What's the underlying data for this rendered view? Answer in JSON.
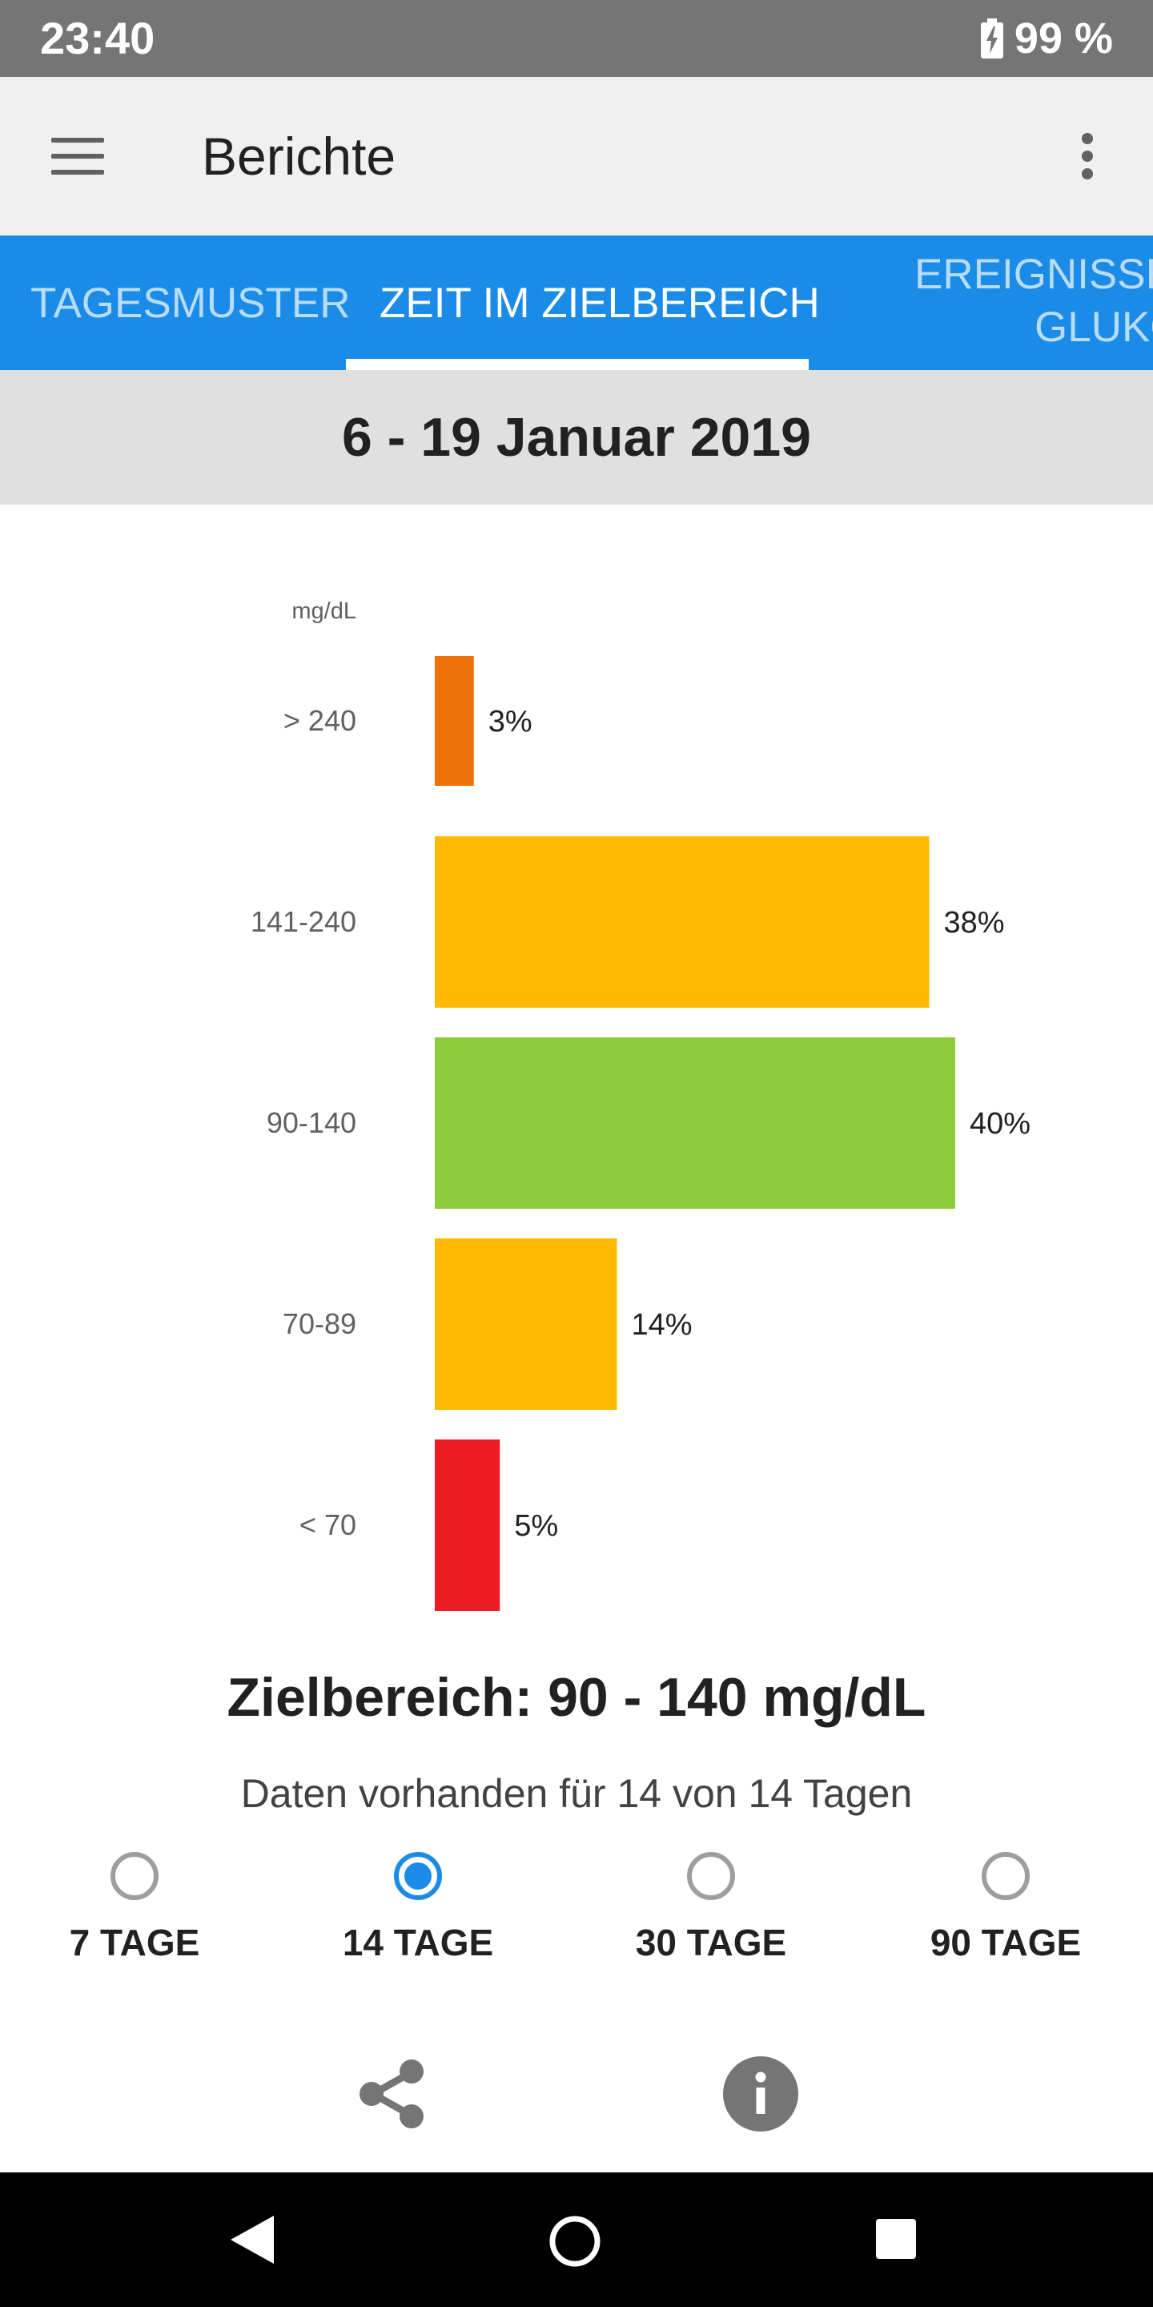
{
  "status_bar": {
    "time": "23:40",
    "battery": "99 %",
    "battery_icon": "battery-charging-icon"
  },
  "app_bar": {
    "title": "Berichte",
    "menu_icon": "menu-icon",
    "more_icon": "more-vert-icon"
  },
  "tabs": [
    {
      "label": "TAGESMUSTER",
      "active": false
    },
    {
      "label": "ZEIT IM ZIELBEREICH",
      "active": true
    },
    {
      "label_line1": "EREIGNISSE",
      "label_line2": "GLUKO",
      "active": false
    }
  ],
  "date_range": "6 - 19 Januar 2019",
  "chart_data": {
    "type": "bar",
    "orientation": "horizontal",
    "unit_label": "mg/dL",
    "categories": [
      "> 240",
      "141-240",
      "90-140",
      "70-89",
      "< 70"
    ],
    "values": [
      3,
      38,
      40,
      14,
      5
    ],
    "value_labels": [
      "3%",
      "38%",
      "40%",
      "14%",
      "5%"
    ],
    "colors": [
      "#ef7107",
      "#ffb900",
      "#8dcb3c",
      "#ffb900",
      "#ed1c24"
    ],
    "xlim": [
      0,
      40
    ],
    "grid": false,
    "legend": "none"
  },
  "target_range": "Zielbereich: 90 - 140 mg/dL",
  "data_availability": "Daten vorhanden für 14 von 14 Tagen",
  "periods": [
    {
      "label": "7 TAGE",
      "selected": false
    },
    {
      "label": "14 TAGE",
      "selected": true
    },
    {
      "label": "30 TAGE",
      "selected": false
    },
    {
      "label": "90 TAGE",
      "selected": false
    }
  ],
  "actions": {
    "share_icon": "share-icon",
    "info_icon": "info-icon"
  },
  "nav_bar": {
    "back_icon": "back-icon",
    "home_icon": "home-icon",
    "recents_icon": "recents-icon"
  },
  "colors": {
    "status_bar": "#757575",
    "app_bar": "#f0f0f0",
    "tab_bar": "#1b8be8",
    "date_bar": "#e0e0e0",
    "accent": "#1b8be8"
  }
}
